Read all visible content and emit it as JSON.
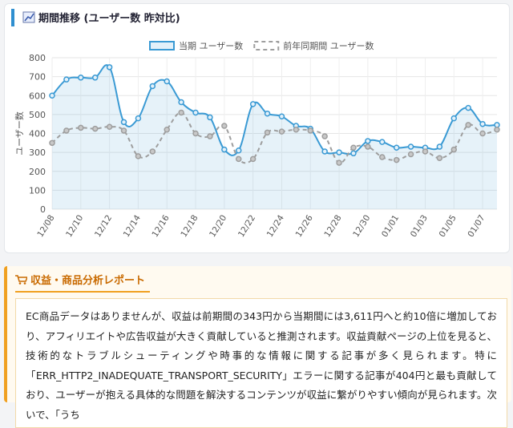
{
  "header": {
    "title": "期間推移 (ユーザー数 昨対比)"
  },
  "chart_data": {
    "type": "line",
    "categories": [
      "12/08",
      null,
      "12/10",
      null,
      "12/12",
      null,
      "12/14",
      null,
      "12/16",
      null,
      "12/18",
      null,
      "12/20",
      null,
      "12/22",
      null,
      "12/24",
      null,
      "12/26",
      null,
      "12/28",
      null,
      "12/30",
      null,
      "01/01",
      null,
      "01/03",
      null,
      "01/05",
      null,
      "01/07",
      null
    ],
    "y_axis_label": "ユーザー数",
    "series": [
      {
        "name": "当期 ユーザー数",
        "color": "#3a9ad4",
        "fill": true,
        "dashed": false,
        "values": [
          600,
          685,
          695,
          695,
          750,
          460,
          480,
          650,
          675,
          565,
          510,
          485,
          315,
          310,
          555,
          505,
          490,
          440,
          425,
          305,
          300,
          295,
          360,
          355,
          325,
          330,
          325,
          330,
          480,
          535,
          450,
          445
        ]
      },
      {
        "name": "前年同期間 ユーザー数",
        "color": "#9e9e9e",
        "fill": false,
        "dashed": true,
        "values": [
          350,
          415,
          430,
          425,
          435,
          415,
          280,
          305,
          420,
          510,
          400,
          385,
          440,
          265,
          265,
          405,
          410,
          420,
          415,
          385,
          245,
          325,
          330,
          275,
          260,
          290,
          305,
          270,
          315,
          445,
          400,
          420
        ]
      }
    ],
    "ylim": [
      0,
      800
    ],
    "yticks": [
      0,
      100,
      200,
      300,
      400,
      500,
      600,
      700,
      800
    ],
    "grid": true,
    "legend": "top"
  },
  "report": {
    "title": "収益・商品分析レポート",
    "text": "EC商品データはありませんが、収益は前期間の343円から当期間には3,611円へと約10倍に増加しており、アフィリエイトや広告収益が大きく貢献していると推測されます。収益貢献ページの上位を見ると、技術的なトラブルシューティングや時事的な情報に関する記事が多く見られます。特に「ERR_HTTP2_INADEQUATE_TRANSPORT_SECURITY」エラーに関する記事が404円と最も貢献しており、ユーザーが抱える具体的な問題を解決するコンテンツが収益に繋がりやすい傾向が見られます。次いで、「うち"
  }
}
